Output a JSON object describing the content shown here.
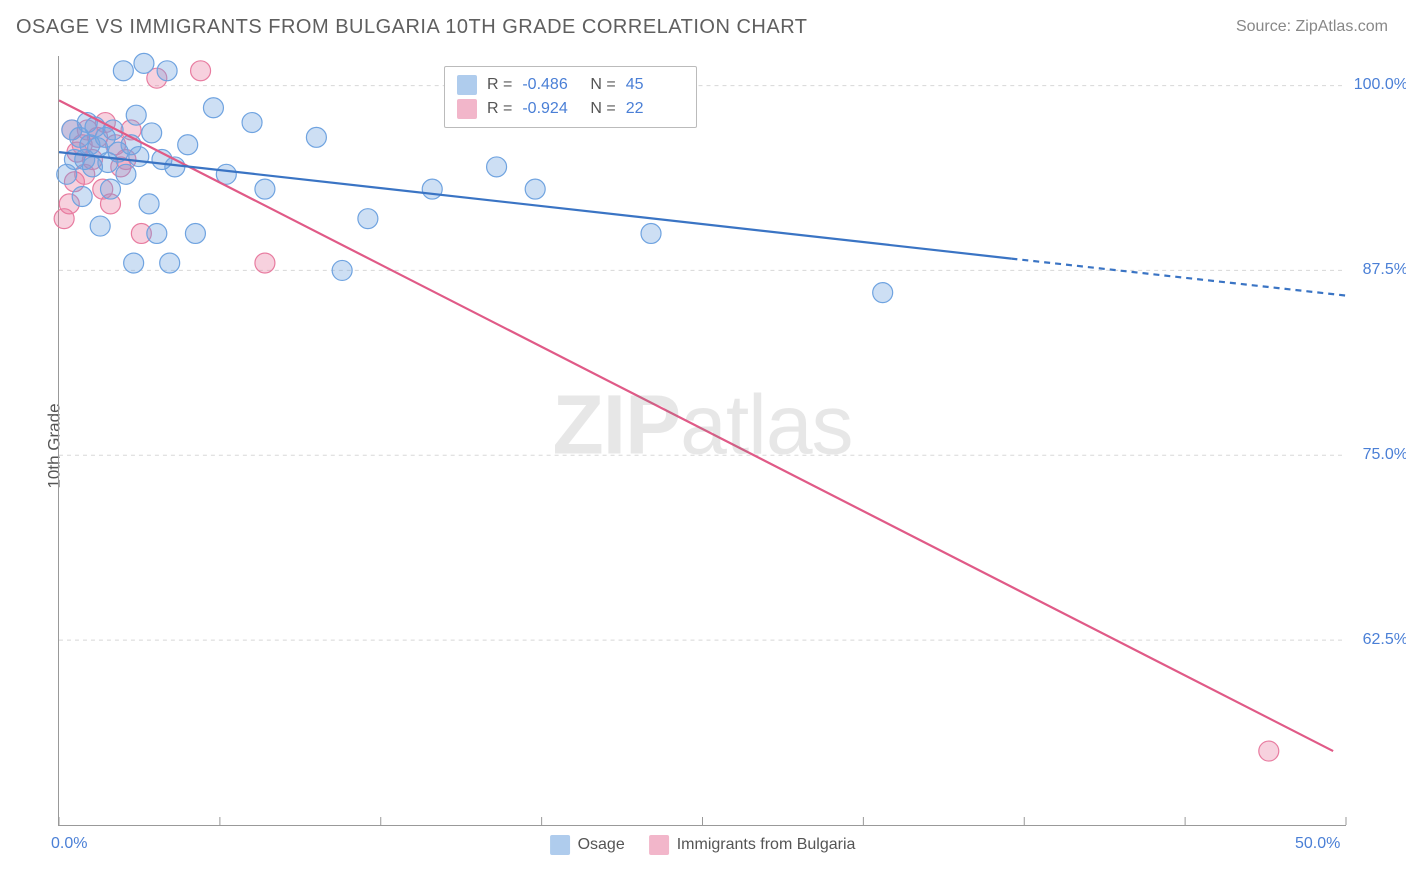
{
  "title": "OSAGE VS IMMIGRANTS FROM BULGARIA 10TH GRADE CORRELATION CHART",
  "source_prefix": "Source: ",
  "source_name": "ZipAtlas.com",
  "y_axis_label": "10th Grade",
  "watermark_a": "ZIP",
  "watermark_b": "atlas",
  "chart": {
    "type": "scatter",
    "background_color": "#ffffff",
    "grid_color": "#d8d8d8",
    "axis_color": "#999999",
    "xlim": [
      0,
      50
    ],
    "ylim": [
      50,
      102
    ],
    "x_ticks": [
      0,
      6.25,
      12.5,
      18.75,
      25,
      31.25,
      37.5,
      43.75,
      50
    ],
    "x_tick_labels": {
      "0": "0.0%",
      "50": "50.0%"
    },
    "y_gridlines": [
      62.5,
      75,
      87.5,
      100
    ],
    "y_tick_labels": {
      "62.5": "62.5%",
      "75": "75.0%",
      "87.5": "87.5%",
      "100": "100.0%"
    },
    "label_color": "#4a7fd6",
    "label_fontsize": 16,
    "title_fontsize": 20,
    "marker_radius": 10,
    "marker_fill_opacity": 0.35,
    "marker_stroke_width": 1.2,
    "line_width": 2.2
  },
  "series": {
    "osage": {
      "label": "Osage",
      "color": "#6fa3e0",
      "line_color": "#3a74c4",
      "R": "-0.486",
      "N": "45",
      "regression": {
        "x1": 0,
        "y1": 95.5,
        "x2": 37,
        "y2": 88.3
      },
      "extension": {
        "x1": 37,
        "y1": 88.3,
        "x2": 50,
        "y2": 85.8
      },
      "points": [
        [
          0.3,
          94.0
        ],
        [
          0.5,
          97.0
        ],
        [
          0.6,
          95.0
        ],
        [
          0.8,
          96.5
        ],
        [
          0.9,
          92.5
        ],
        [
          1.0,
          95.0
        ],
        [
          1.1,
          97.5
        ],
        [
          1.2,
          96.0
        ],
        [
          1.3,
          94.5
        ],
        [
          1.4,
          97.2
        ],
        [
          1.5,
          95.8
        ],
        [
          1.6,
          90.5
        ],
        [
          1.8,
          96.5
        ],
        [
          1.9,
          94.8
        ],
        [
          2.0,
          93.0
        ],
        [
          2.1,
          97.0
        ],
        [
          2.3,
          95.5
        ],
        [
          2.5,
          101.0
        ],
        [
          2.6,
          94.0
        ],
        [
          2.8,
          96.0
        ],
        [
          2.9,
          88.0
        ],
        [
          3.0,
          98.0
        ],
        [
          3.1,
          95.2
        ],
        [
          3.3,
          101.5
        ],
        [
          3.5,
          92.0
        ],
        [
          3.6,
          96.8
        ],
        [
          3.8,
          90.0
        ],
        [
          4.0,
          95.0
        ],
        [
          4.2,
          101.0
        ],
        [
          4.3,
          88.0
        ],
        [
          4.5,
          94.5
        ],
        [
          5.0,
          96.0
        ],
        [
          5.3,
          90.0
        ],
        [
          6.0,
          98.5
        ],
        [
          6.5,
          94.0
        ],
        [
          7.5,
          97.5
        ],
        [
          8.0,
          93.0
        ],
        [
          10.0,
          96.5
        ],
        [
          11.0,
          87.5
        ],
        [
          12.0,
          91.0
        ],
        [
          14.5,
          93.0
        ],
        [
          17.0,
          94.5
        ],
        [
          18.5,
          93.0
        ],
        [
          23.0,
          90.0
        ],
        [
          32.0,
          86.0
        ]
      ]
    },
    "bulgaria": {
      "label": "Immigrants from Bulgaria",
      "color": "#e87ca0",
      "line_color": "#e05a87",
      "R": "-0.924",
      "N": "22",
      "regression": {
        "x1": 0,
        "y1": 99.0,
        "x2": 49.5,
        "y2": 55.0
      },
      "points": [
        [
          0.2,
          91.0
        ],
        [
          0.4,
          92.0
        ],
        [
          0.5,
          97.0
        ],
        [
          0.6,
          93.5
        ],
        [
          0.7,
          95.5
        ],
        [
          0.9,
          96.0
        ],
        [
          1.0,
          94.0
        ],
        [
          1.1,
          97.0
        ],
        [
          1.3,
          95.0
        ],
        [
          1.5,
          96.5
        ],
        [
          1.7,
          93.0
        ],
        [
          1.8,
          97.5
        ],
        [
          2.0,
          92.0
        ],
        [
          2.2,
          96.0
        ],
        [
          2.4,
          94.5
        ],
        [
          2.6,
          95.0
        ],
        [
          2.8,
          97.0
        ],
        [
          3.2,
          90.0
        ],
        [
          3.8,
          100.5
        ],
        [
          5.5,
          101.0
        ],
        [
          8.0,
          88.0
        ],
        [
          47.0,
          55.0
        ]
      ]
    }
  },
  "legend_labels": {
    "R": "R =",
    "N": "N ="
  }
}
